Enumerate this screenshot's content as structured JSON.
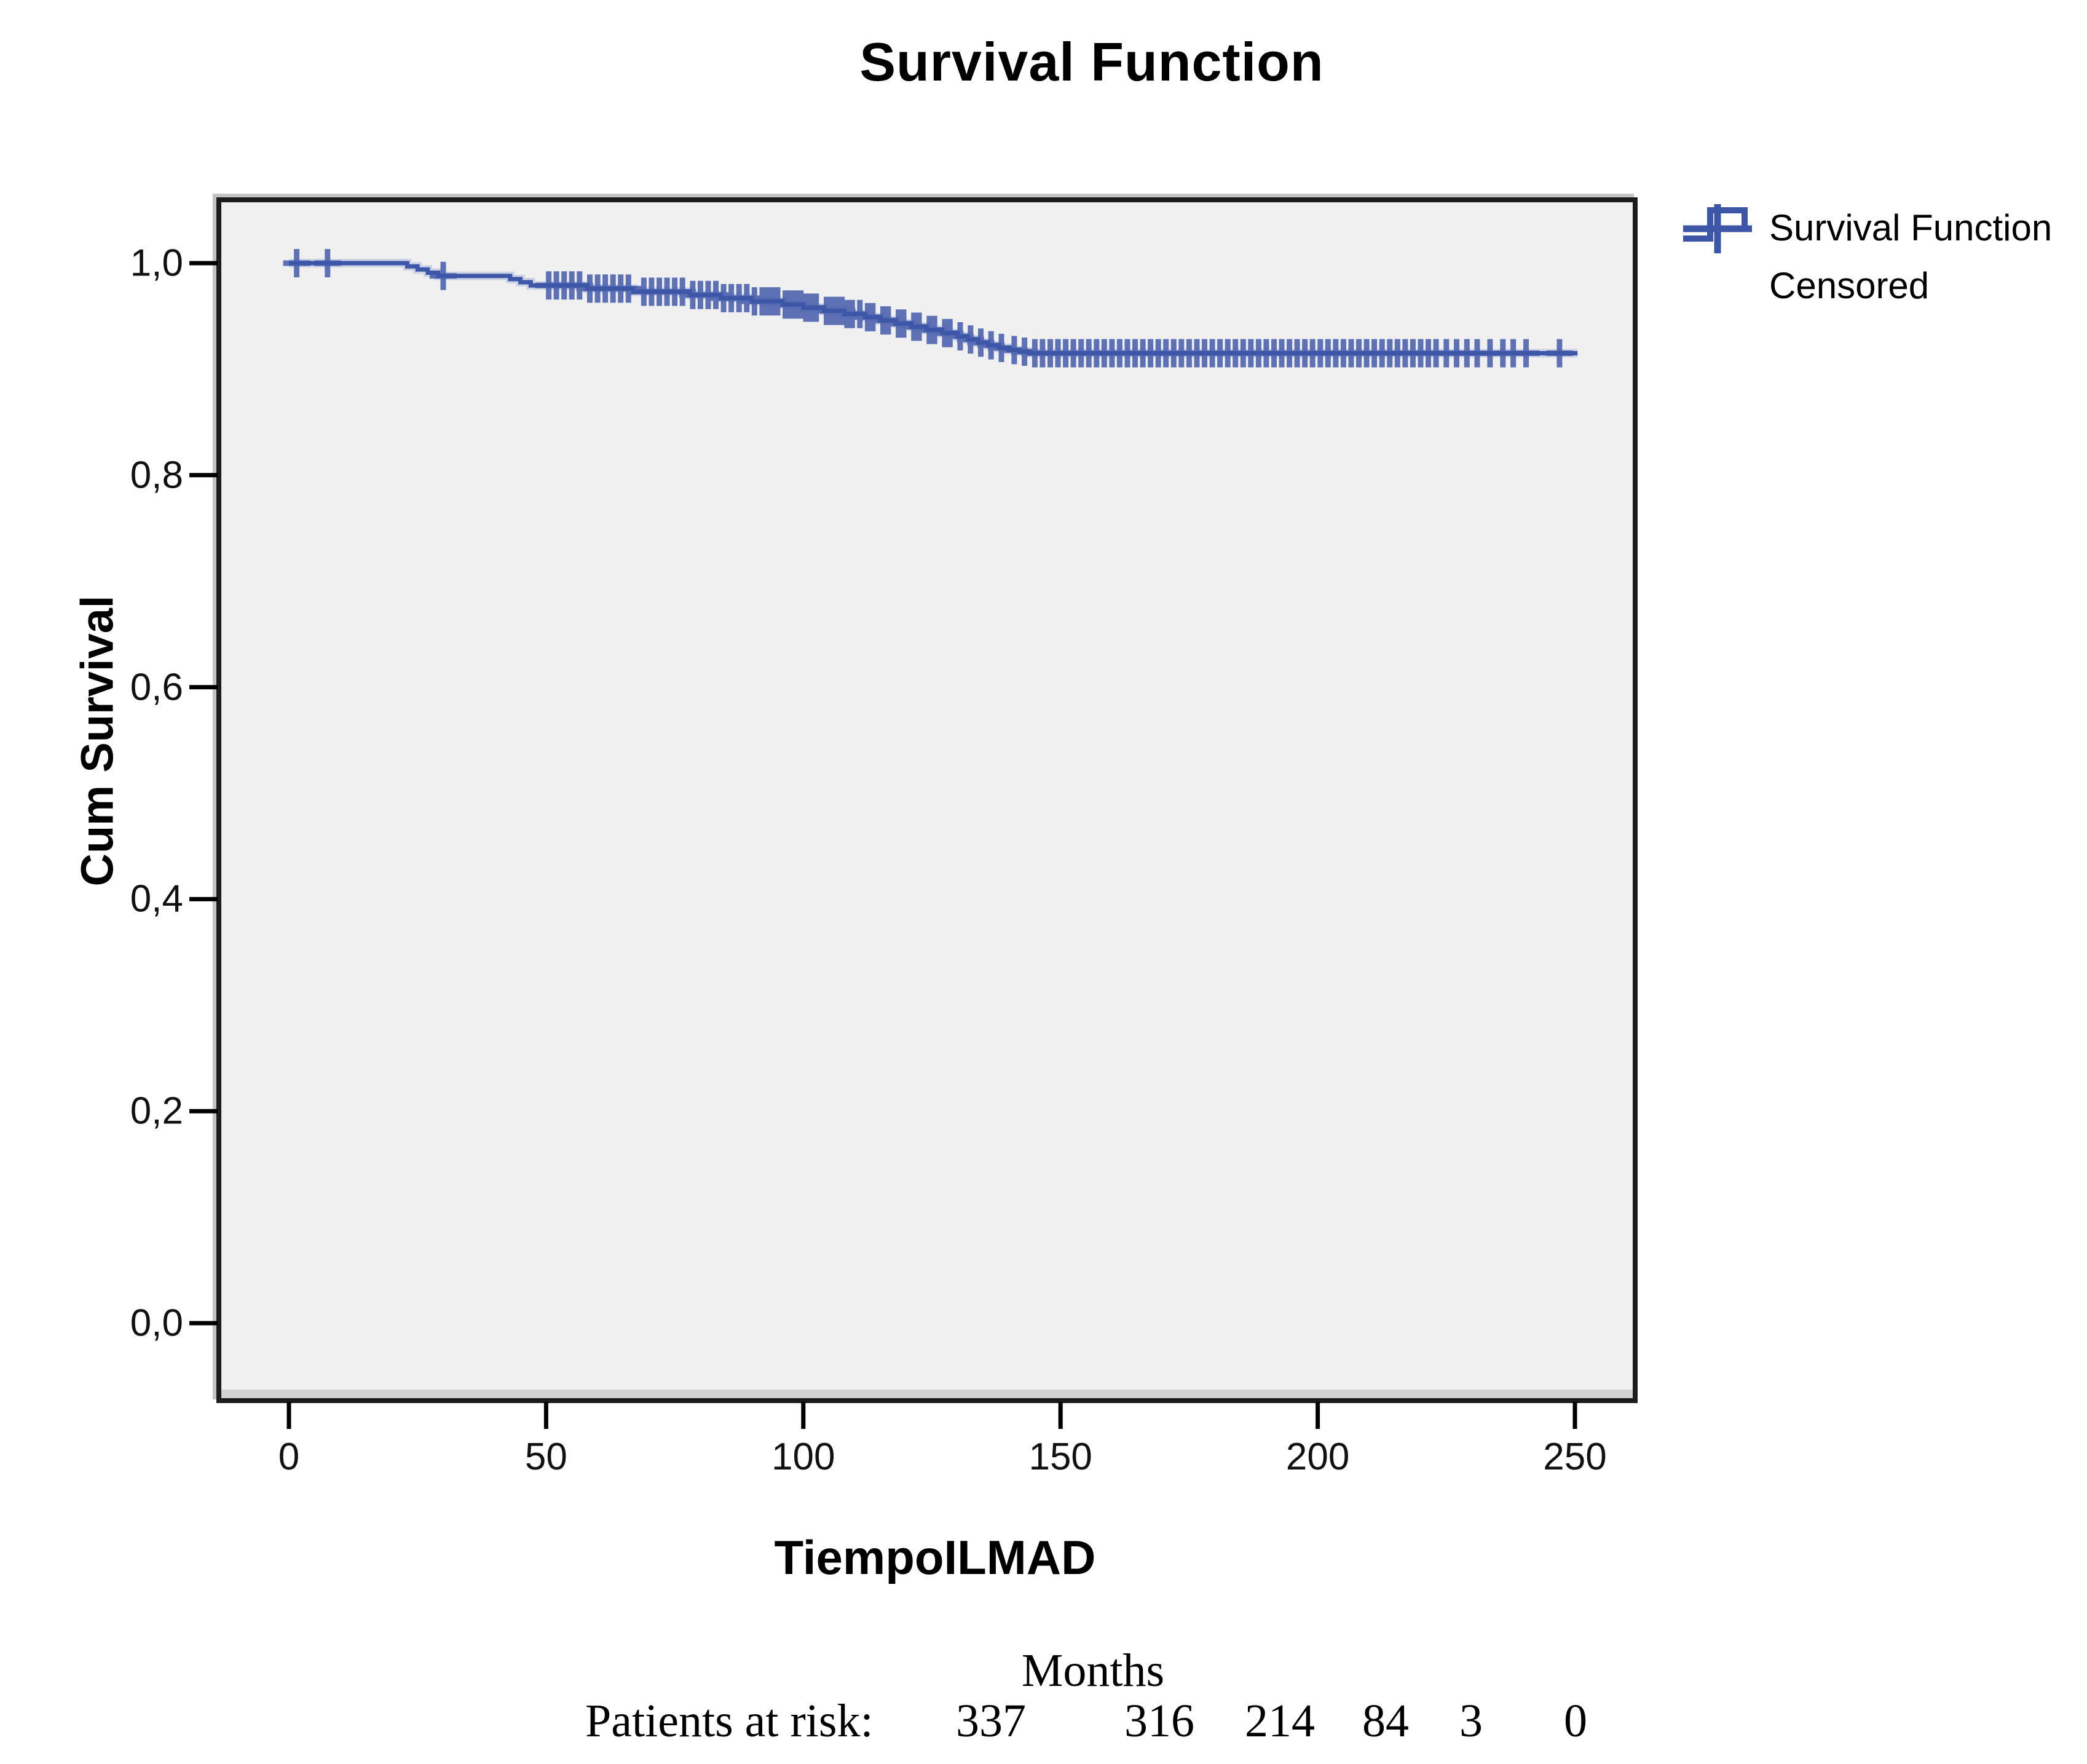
{
  "title": "Survival Function",
  "legend": {
    "items": [
      {
        "label": "Survival Function",
        "type": "step-line"
      },
      {
        "label": "Censored",
        "type": "plus-marker"
      }
    ]
  },
  "axes": {
    "x": {
      "title": "TiempoILMAD",
      "tick_labels": [
        "0",
        "50",
        "100",
        "150",
        "200",
        "250"
      ]
    },
    "y": {
      "title": "Cum Survival",
      "tick_labels": [
        "0,0",
        "0,2",
        "0,4",
        "0,6",
        "0,8",
        "1,0"
      ]
    }
  },
  "footer": {
    "months_label": "Months",
    "at_risk_label": "Patients at risk:",
    "at_risk_counts": [
      "337",
      "316",
      "214",
      "84",
      "3",
      "0"
    ]
  },
  "colors": {
    "series": "#3e56a8",
    "series_halo": "#9dacd8",
    "plot_background": "#f0f0f0",
    "frame": "#1c1c1c",
    "bevel": "#c2c2c2",
    "inner_shadow": "#d2d2d2"
  },
  "chart_data": {
    "type": "line",
    "subtype": "kaplan-meier-step",
    "title": "Survival Function",
    "xlabel": "TiempoILMAD (Months)",
    "ylabel": "Cum Survival",
    "xlim": [
      0,
      250
    ],
    "ylim": [
      0.0,
      1.0
    ],
    "x_ticks": [
      0,
      50,
      100,
      150,
      200,
      250
    ],
    "y_ticks": [
      0.0,
      0.2,
      0.4,
      0.6,
      0.8,
      1.0
    ],
    "grid": false,
    "legend_position": "top-right",
    "series": [
      {
        "name": "Survival Function",
        "steps_t_s": [
          [
            0,
            1.0
          ],
          [
            23,
            0.997
          ],
          [
            25,
            0.994
          ],
          [
            27,
            0.991
          ],
          [
            29,
            0.988
          ],
          [
            43,
            0.985
          ],
          [
            45,
            0.982
          ],
          [
            47,
            0.979
          ],
          [
            58,
            0.976
          ],
          [
            67,
            0.973
          ],
          [
            78,
            0.97
          ],
          [
            84,
            0.967
          ],
          [
            90,
            0.964
          ],
          [
            96,
            0.961
          ],
          [
            100,
            0.958
          ],
          [
            104,
            0.955
          ],
          [
            108,
            0.952
          ],
          [
            112,
            0.949
          ],
          [
            115,
            0.946
          ],
          [
            118,
            0.943
          ],
          [
            121,
            0.94
          ],
          [
            124,
            0.937
          ],
          [
            127,
            0.934
          ],
          [
            130,
            0.931
          ],
          [
            132,
            0.928
          ],
          [
            134,
            0.925
          ],
          [
            136,
            0.9225
          ],
          [
            138,
            0.92
          ],
          [
            140,
            0.918
          ],
          [
            142,
            0.9165
          ],
          [
            144,
            0.915
          ]
        ],
        "end_time": 250.5
      }
    ],
    "censored_times": [
      1.5,
      7.5,
      30,
      50.5,
      52,
      53.5,
      55,
      56.5,
      58.5,
      60,
      61.5,
      63,
      64.5,
      66,
      69,
      70.5,
      72,
      73.5,
      75,
      76.5,
      78.5,
      80,
      81.5,
      83,
      84.5,
      86,
      87.5,
      89,
      90.5,
      92,
      93,
      94,
      95,
      96.5,
      97.5,
      98.5,
      99.5,
      100.5,
      101.5,
      102.5,
      104.5,
      105.5,
      106.5,
      107.5,
      108.5,
      109.5,
      111,
      112.5,
      113.5,
      115.5,
      116.5,
      118.5,
      119.5,
      121.5,
      122.5,
      124.5,
      125.5,
      127.5,
      128.5,
      130.5,
      132.5,
      134.5,
      136.5,
      138.5,
      141,
      143,
      145,
      146.5,
      148,
      149.5,
      151,
      152.5,
      154,
      155.5,
      157,
      158.5,
      160,
      161.5,
      163,
      164.5,
      166,
      167.5,
      169,
      170.5,
      172,
      173.5,
      175,
      176.5,
      178,
      179.5,
      181,
      182.5,
      184,
      185.5,
      187,
      188.5,
      190,
      191.5,
      193,
      194.5,
      196,
      197.5,
      199,
      200.5,
      202,
      203.5,
      205,
      206.5,
      208,
      209.5,
      211,
      212.5,
      214,
      215.5,
      217,
      218.5,
      220,
      221.5,
      223,
      225,
      227,
      229,
      231,
      233.5,
      236,
      238,
      240.5,
      247
    ],
    "at_risk": {
      "times": [
        0,
        50,
        100,
        150,
        200,
        250
      ],
      "counts": [
        337,
        316,
        214,
        84,
        3,
        0
      ]
    }
  }
}
